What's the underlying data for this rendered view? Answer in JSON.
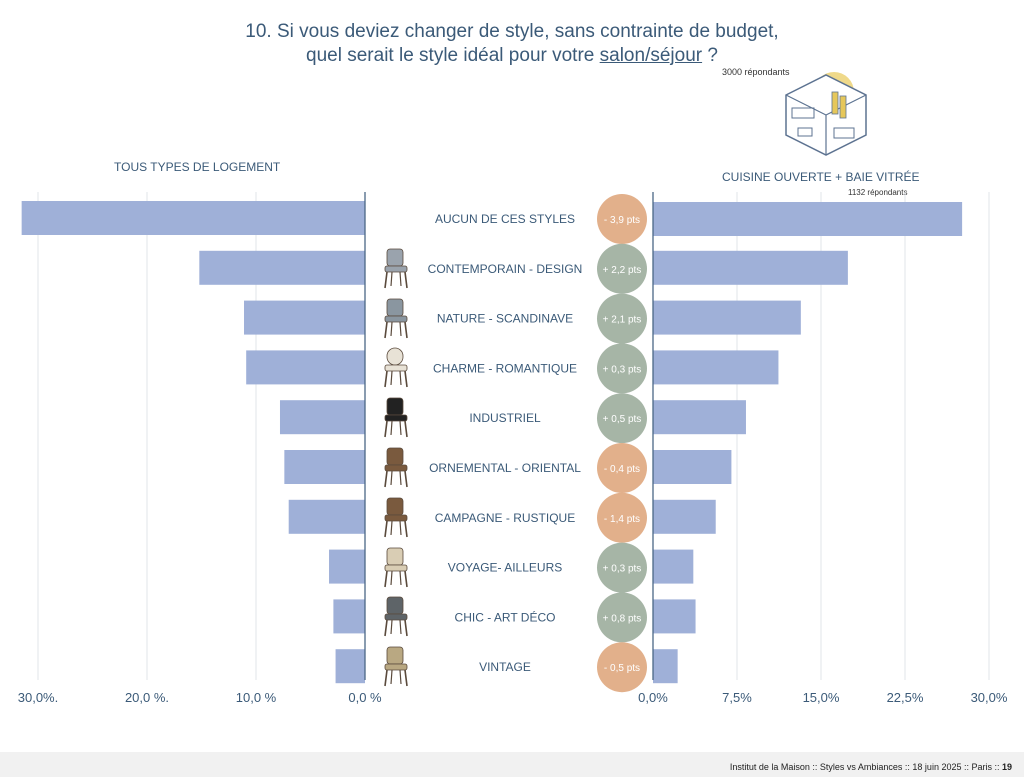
{
  "header": {
    "title_line1": "10. Si vous deviez changer de style, sans contrainte de budget,",
    "title_line2_prefix": "quel serait le style idéal pour votre ",
    "title_line2_underlined": "salon/séjour",
    "title_line2_suffix": " ?",
    "respondents_total": "3000 répondants"
  },
  "left_panel": {
    "heading": "TOUS TYPES DE LOGEMENT"
  },
  "right_panel": {
    "heading": "CUISINE OUVERTE + BAIE VITRÉE",
    "respondents": "1132 répondants"
  },
  "colors": {
    "bar": "#9fb0d8",
    "positive_badge": "#a6b5a6",
    "negative_badge": "#e2b08b",
    "axis": "#4a6686",
    "grid": "#e0e4ea",
    "text": "#3b5a78"
  },
  "chart_data": [
    {
      "type": "bar",
      "orientation": "horizontal-reversed",
      "title": "TOUS TYPES DE LOGEMENT",
      "categories": [
        "AUCUN DE CES STYLES",
        "CONTEMPORAIN - DESIGN",
        "NATURE - SCANDINAVE",
        "CHARME - ROMANTIQUE",
        "INDUSTRIEL",
        "ORNEMENTAL - ORIENTAL",
        "CAMPAGNE - RUSTIQUE",
        "VOYAGE- AILLEURS",
        "CHIC - ART DÉCO",
        "VINTAGE"
      ],
      "values": [
        31.5,
        15.2,
        11.1,
        10.9,
        7.8,
        7.4,
        7.0,
        3.3,
        2.9,
        2.7
      ],
      "xlim": [
        0,
        30
      ],
      "tick_values": [
        30,
        20,
        10,
        0
      ],
      "tick_labels": [
        "30,0%.",
        "20,0 %.",
        "10,0 %",
        "0,0 %"
      ],
      "grid": true
    },
    {
      "type": "bar",
      "orientation": "horizontal",
      "title": "CUISINE OUVERTE + BAIE VITRÉE",
      "categories": [
        "AUCUN DE CES STYLES",
        "CONTEMPORAIN - DESIGN",
        "NATURE - SCANDINAVE",
        "CHARME - ROMANTIQUE",
        "INDUSTRIEL",
        "ORNEMENTAL - ORIENTAL",
        "CAMPAGNE - RUSTIQUE",
        "VOYAGE- AILLEURS",
        "CHIC - ART DÉCO",
        "VINTAGE"
      ],
      "values": [
        27.6,
        17.4,
        13.2,
        11.2,
        8.3,
        7.0,
        5.6,
        3.6,
        3.8,
        2.2
      ],
      "xlim": [
        0,
        30
      ],
      "tick_values": [
        0,
        7.5,
        15,
        22.5,
        30
      ],
      "tick_labels": [
        "0,0%",
        "7,5%",
        "15,0%",
        "22,5%",
        "30,0%"
      ],
      "grid": true
    }
  ],
  "differences": {
    "labels": [
      "- 3,9 pts",
      "+ 2,2 pts",
      "+ 2,1 pts",
      "+ 0,3 pts",
      "+ 0,5 pts",
      "- 0,4 pts",
      "- 1,4 pts",
      "+ 0,3 pts",
      "+ 0,8 pts",
      "- 0,5 pts"
    ],
    "signs": [
      "neg",
      "pos",
      "pos",
      "pos",
      "pos",
      "neg",
      "neg",
      "pos",
      "pos",
      "neg"
    ]
  },
  "chair_icons": [
    "",
    "armchair-modern-icon",
    "scandinavian-chair-icon",
    "medallion-chair-icon",
    "industrial-metal-chair-icon",
    "carved-armchair-icon",
    "straw-rustic-chair-icon",
    "wire-chair-icon",
    "velvet-armchair-icon",
    "cantilever-cane-chair-icon"
  ],
  "footer": {
    "source": "Institut de la Maison :: Styles vs Ambiances :: 18 juin 2025 :: Paris :: ",
    "page": "19"
  }
}
